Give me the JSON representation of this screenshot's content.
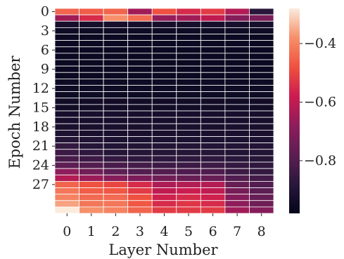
{
  "chart_data": {
    "type": "heatmap",
    "xlabel": "Layer Number",
    "ylabel": "Epoch Number",
    "x_categories": [
      0,
      1,
      2,
      3,
      4,
      5,
      6,
      7,
      8
    ],
    "y_categories": [
      0,
      1,
      2,
      3,
      4,
      5,
      6,
      7,
      8,
      9,
      10,
      11,
      12,
      13,
      14,
      15,
      16,
      17,
      18,
      19,
      20,
      21,
      22,
      23,
      24,
      25,
      26,
      27,
      28,
      29,
      30,
      31
    ],
    "x_tick_labels": [
      "0",
      "1",
      "2",
      "3",
      "4",
      "5",
      "6",
      "7",
      "8"
    ],
    "y_tick_labels": [
      "0",
      "3",
      "6",
      "9",
      "12",
      "15",
      "18",
      "21",
      "24",
      "27"
    ],
    "colorbar": {
      "min": -0.98,
      "max": -0.28,
      "ticks": [
        -0.4,
        -0.6,
        -0.8
      ],
      "tick_labels": [
        "−0.4",
        "−0.6",
        "−0.8"
      ],
      "colormap": "rocket"
    },
    "grid_lines": true,
    "values": [
      [
        -0.45,
        -0.46,
        -0.45,
        -0.65,
        -0.48,
        -0.55,
        -0.52,
        -0.62,
        -0.88
      ],
      [
        -0.65,
        -0.55,
        -0.38,
        -0.44,
        -0.67,
        -0.65,
        -0.6,
        -0.7,
        -0.72
      ],
      [
        -0.93,
        -0.93,
        -0.93,
        -0.93,
        -0.93,
        -0.93,
        -0.93,
        -0.93,
        -0.93
      ],
      [
        -0.95,
        -0.95,
        -0.95,
        -0.95,
        -0.95,
        -0.95,
        -0.95,
        -0.95,
        -0.95
      ],
      [
        -0.96,
        -0.96,
        -0.96,
        -0.96,
        -0.96,
        -0.96,
        -0.96,
        -0.96,
        -0.96
      ],
      [
        -0.96,
        -0.96,
        -0.96,
        -0.96,
        -0.96,
        -0.96,
        -0.96,
        -0.96,
        -0.96
      ],
      [
        -0.96,
        -0.96,
        -0.96,
        -0.96,
        -0.96,
        -0.96,
        -0.96,
        -0.96,
        -0.96
      ],
      [
        -0.96,
        -0.96,
        -0.96,
        -0.96,
        -0.96,
        -0.96,
        -0.96,
        -0.96,
        -0.96
      ],
      [
        -0.96,
        -0.96,
        -0.96,
        -0.96,
        -0.96,
        -0.96,
        -0.96,
        -0.96,
        -0.96
      ],
      [
        -0.96,
        -0.96,
        -0.96,
        -0.96,
        -0.96,
        -0.96,
        -0.96,
        -0.96,
        -0.96
      ],
      [
        -0.96,
        -0.96,
        -0.96,
        -0.96,
        -0.96,
        -0.96,
        -0.96,
        -0.96,
        -0.96
      ],
      [
        -0.95,
        -0.95,
        -0.95,
        -0.95,
        -0.95,
        -0.95,
        -0.95,
        -0.95,
        -0.95
      ],
      [
        -0.95,
        -0.95,
        -0.95,
        -0.95,
        -0.95,
        -0.95,
        -0.95,
        -0.95,
        -0.95
      ],
      [
        -0.95,
        -0.95,
        -0.95,
        -0.95,
        -0.95,
        -0.95,
        -0.95,
        -0.95,
        -0.95
      ],
      [
        -0.94,
        -0.94,
        -0.94,
        -0.94,
        -0.94,
        -0.94,
        -0.94,
        -0.94,
        -0.94
      ],
      [
        -0.94,
        -0.94,
        -0.94,
        -0.94,
        -0.94,
        -0.94,
        -0.94,
        -0.94,
        -0.94
      ],
      [
        -0.93,
        -0.93,
        -0.93,
        -0.93,
        -0.93,
        -0.93,
        -0.93,
        -0.93,
        -0.93
      ],
      [
        -0.93,
        -0.93,
        -0.93,
        -0.93,
        -0.93,
        -0.93,
        -0.93,
        -0.93,
        -0.93
      ],
      [
        -0.92,
        -0.92,
        -0.92,
        -0.92,
        -0.92,
        -0.92,
        -0.92,
        -0.92,
        -0.92
      ],
      [
        -0.91,
        -0.92,
        -0.92,
        -0.92,
        -0.92,
        -0.92,
        -0.92,
        -0.92,
        -0.92
      ],
      [
        -0.89,
        -0.9,
        -0.91,
        -0.91,
        -0.91,
        -0.91,
        -0.91,
        -0.91,
        -0.91
      ],
      [
        -0.86,
        -0.89,
        -0.9,
        -0.9,
        -0.9,
        -0.9,
        -0.9,
        -0.9,
        -0.9
      ],
      [
        -0.84,
        -0.87,
        -0.89,
        -0.89,
        -0.89,
        -0.89,
        -0.89,
        -0.9,
        -0.9
      ],
      [
        -0.82,
        -0.84,
        -0.86,
        -0.87,
        -0.87,
        -0.87,
        -0.87,
        -0.88,
        -0.89
      ],
      [
        -0.78,
        -0.8,
        -0.82,
        -0.83,
        -0.84,
        -0.84,
        -0.84,
        -0.86,
        -0.87
      ],
      [
        -0.68,
        -0.74,
        -0.78,
        -0.8,
        -0.8,
        -0.81,
        -0.81,
        -0.84,
        -0.86
      ],
      [
        -0.62,
        -0.66,
        -0.7,
        -0.72,
        -0.74,
        -0.76,
        -0.76,
        -0.8,
        -0.83
      ],
      [
        -0.45,
        -0.48,
        -0.5,
        -0.55,
        -0.63,
        -0.62,
        -0.62,
        -0.76,
        -0.8
      ],
      [
        -0.42,
        -0.46,
        -0.47,
        -0.52,
        -0.6,
        -0.58,
        -0.6,
        -0.73,
        -0.78
      ],
      [
        -0.4,
        -0.44,
        -0.44,
        -0.48,
        -0.57,
        -0.55,
        -0.57,
        -0.7,
        -0.76
      ],
      [
        -0.36,
        -0.42,
        -0.42,
        -0.47,
        -0.55,
        -0.53,
        -0.55,
        -0.68,
        -0.74
      ],
      [
        -0.28,
        -0.38,
        -0.4,
        -0.45,
        -0.52,
        -0.52,
        -0.52,
        -0.65,
        -0.7
      ]
    ]
  }
}
